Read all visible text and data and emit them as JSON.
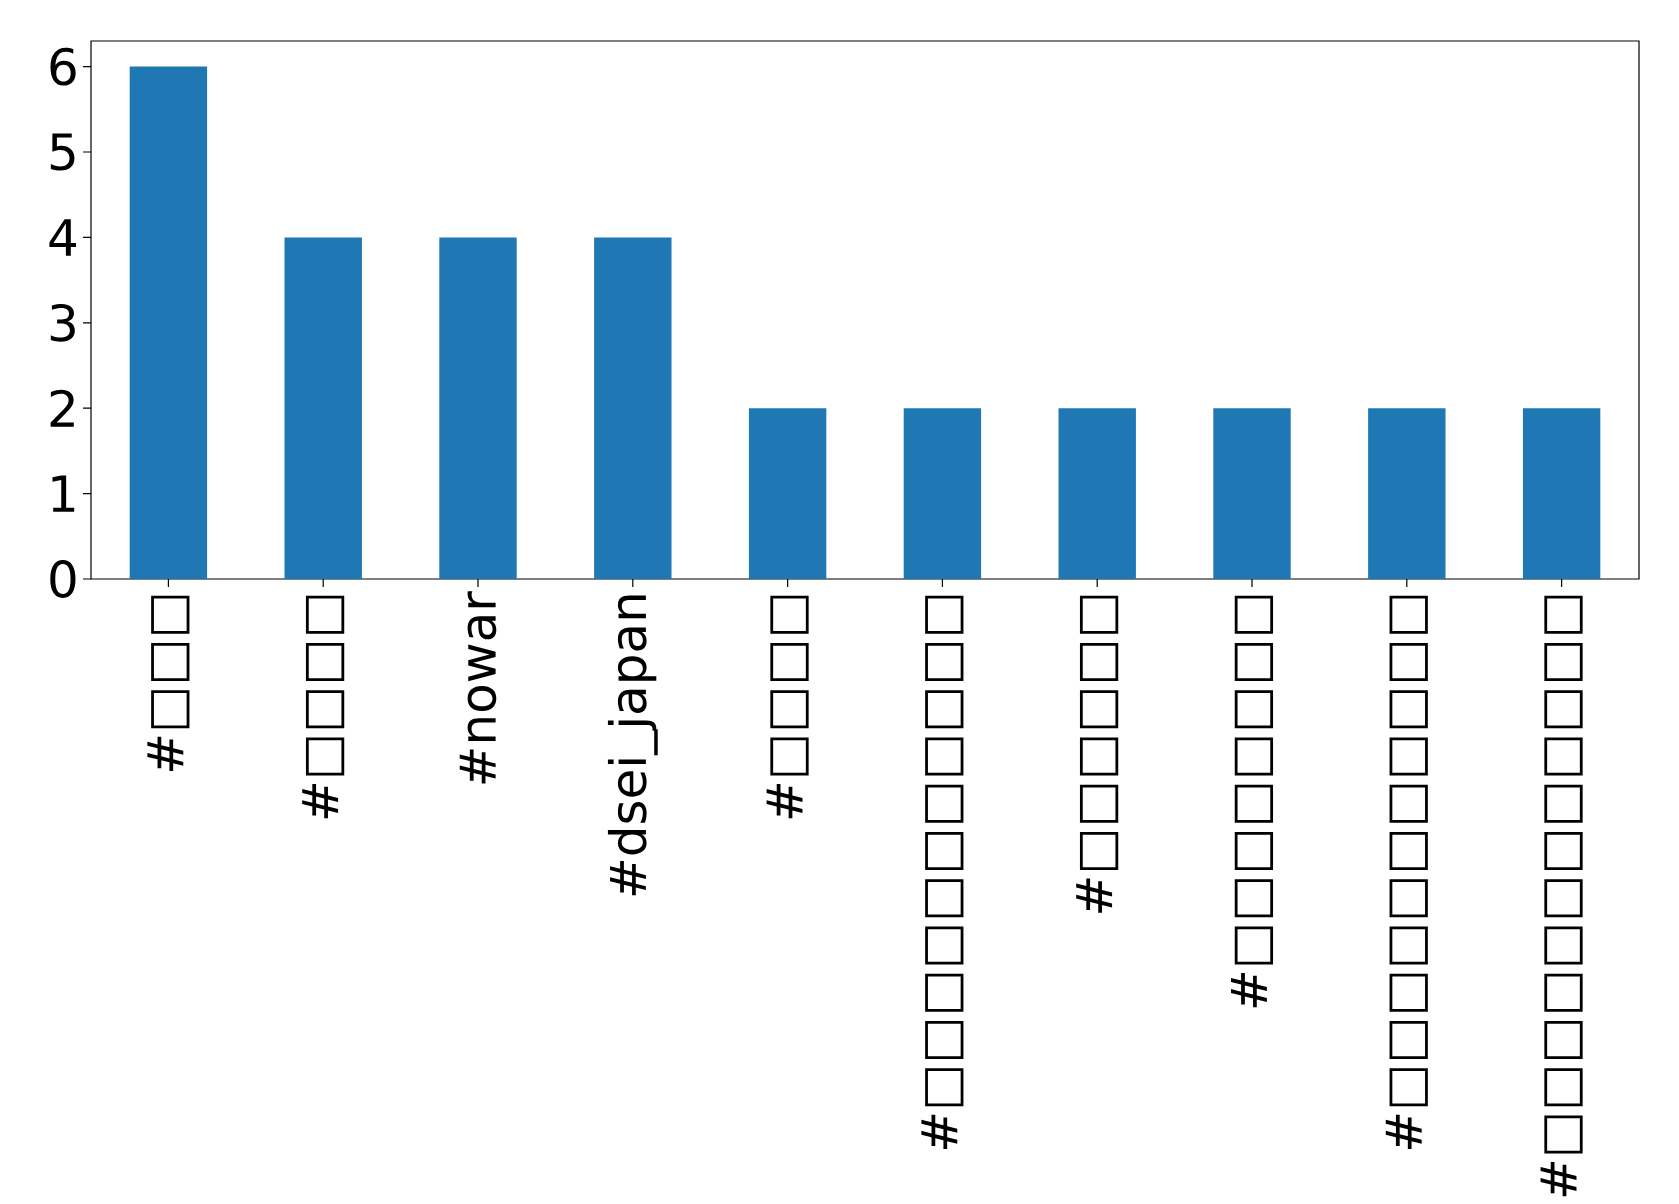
{
  "chart_data": {
    "type": "bar",
    "categories": [
      "#□□□",
      "#□□□□",
      "#nowar",
      "#dsei_japan",
      "#□□□□",
      "#□□□□□□□□□□□",
      "#□□□□□□",
      "#□□□□□□□□",
      "#□□□□□□□□□□□",
      "#□□□□□□□□□□□□"
    ],
    "values": [
      6,
      4,
      4,
      4,
      2,
      2,
      2,
      2,
      2,
      2
    ],
    "color": "#1f77b4",
    "ylim": [
      0,
      6.3
    ],
    "yticks": [
      0,
      1,
      2,
      3,
      4,
      5,
      6
    ]
  }
}
